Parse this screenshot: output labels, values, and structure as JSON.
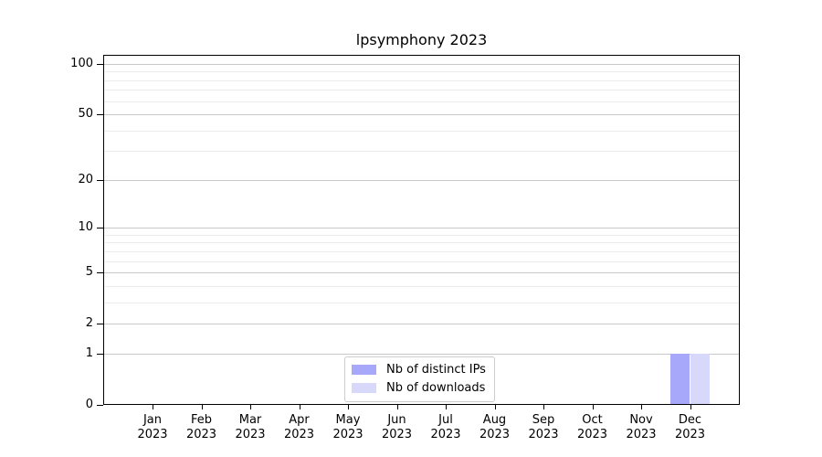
{
  "chart_data": {
    "type": "bar",
    "title": "lpsymphony 2023",
    "categories": [
      {
        "month": "Jan",
        "year": "2023"
      },
      {
        "month": "Feb",
        "year": "2023"
      },
      {
        "month": "Mar",
        "year": "2023"
      },
      {
        "month": "Apr",
        "year": "2023"
      },
      {
        "month": "May",
        "year": "2023"
      },
      {
        "month": "Jun",
        "year": "2023"
      },
      {
        "month": "Jul",
        "year": "2023"
      },
      {
        "month": "Aug",
        "year": "2023"
      },
      {
        "month": "Sep",
        "year": "2023"
      },
      {
        "month": "Oct",
        "year": "2023"
      },
      {
        "month": "Nov",
        "year": "2023"
      },
      {
        "month": "Dec",
        "year": "2023"
      }
    ],
    "series": [
      {
        "name": "Nb of distinct IPs",
        "color": "#a8a8fa",
        "values": [
          0,
          0,
          0,
          0,
          0,
          0,
          0,
          0,
          0,
          0,
          0,
          1
        ]
      },
      {
        "name": "Nb of downloads",
        "color": "#d8d8fa",
        "values": [
          0,
          0,
          0,
          0,
          0,
          0,
          0,
          0,
          0,
          0,
          0,
          1
        ]
      }
    ],
    "xlabel": "",
    "ylabel": "",
    "y_scale": "log1p",
    "y_ticks": [
      0,
      1,
      2,
      5,
      10,
      20,
      50,
      100
    ],
    "y_minor_gridlines": [
      3,
      4,
      6,
      7,
      8,
      9,
      30,
      40,
      60,
      70,
      80,
      90
    ],
    "ylim": [
      0,
      113
    ],
    "grid": "horizontal",
    "legend_position": "lower-center",
    "colors": {
      "major_grid": "#c8c8c8",
      "minor_grid": "#ececec",
      "spine": "#000000",
      "text": "#000000",
      "background": "#ffffff"
    }
  }
}
